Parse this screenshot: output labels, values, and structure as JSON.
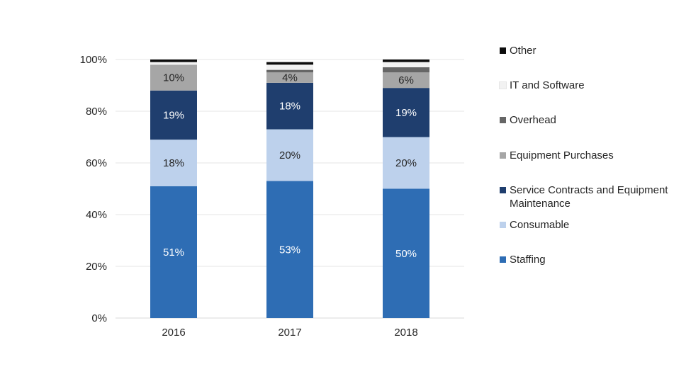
{
  "chart_data": {
    "type": "bar",
    "stacked": true,
    "categories": [
      "2016",
      "2017",
      "2018"
    ],
    "series": [
      {
        "name": "Staffing",
        "values": [
          51,
          53,
          50
        ],
        "color": "#2e6db4",
        "label_color": "#ffffff",
        "labels": [
          "51%",
          "53%",
          "50%"
        ]
      },
      {
        "name": "Consumable",
        "values": [
          18,
          20,
          20
        ],
        "color": "#bdd1ec",
        "label_color": "#262626",
        "labels": [
          "18%",
          "20%",
          "20%"
        ]
      },
      {
        "name": "Service Contracts and Equipment Maintenance",
        "values": [
          19,
          18,
          19
        ],
        "color": "#1f3e6e",
        "label_color": "#ffffff",
        "labels": [
          "19%",
          "18%",
          "19%"
        ]
      },
      {
        "name": "Equipment Purchases",
        "values": [
          10,
          4,
          6
        ],
        "color": "#a6a6a6",
        "label_color": "#262626",
        "labels": [
          "10%",
          "4%",
          "6%"
        ]
      },
      {
        "name": "Overhead",
        "values": [
          0,
          1,
          2
        ],
        "color": "#666666",
        "label_color": "#262626",
        "labels": [
          "",
          "",
          ""
        ]
      },
      {
        "name": "IT and Software",
        "values": [
          1,
          2,
          2
        ],
        "color": "#f2f2f2",
        "label_color": "#262626",
        "labels": [
          "",
          "",
          ""
        ]
      },
      {
        "name": "Other",
        "values": [
          1,
          1,
          1
        ],
        "color": "#0d0d0d",
        "label_color": "#ffffff",
        "labels": [
          "",
          "",
          ""
        ]
      }
    ],
    "y_ticks": [
      "0%",
      "20%",
      "40%",
      "60%",
      "80%",
      "100%"
    ],
    "ylim": [
      0,
      100
    ],
    "grid": true,
    "legend_position": "right",
    "legend_order": [
      "Other",
      "IT and Software",
      "Overhead",
      "Equipment Purchases",
      "Service Contracts and Equipment Maintenance",
      "Consumable",
      "Staffing"
    ]
  }
}
